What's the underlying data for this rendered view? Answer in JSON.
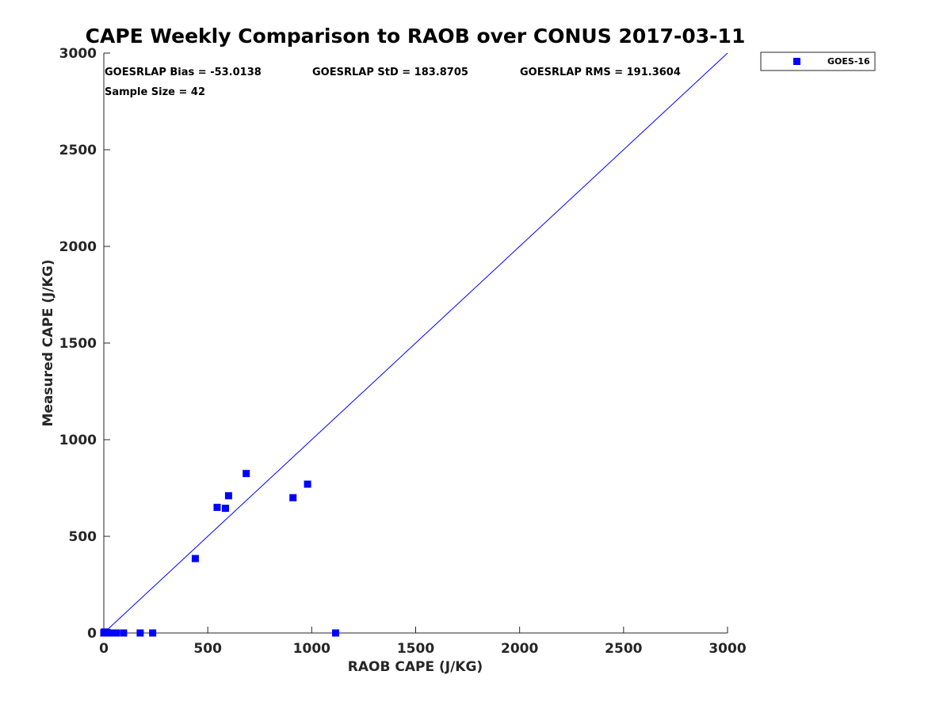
{
  "chart_data": {
    "type": "scatter",
    "title": "CAPE Weekly Comparison to RAOB over CONUS 2017-03-11",
    "xlabel": "RAOB CAPE (J/KG)",
    "ylabel": "Measured CAPE (J/KG)",
    "xlim": [
      0,
      3000
    ],
    "ylim": [
      0,
      3000
    ],
    "xticks": [
      0,
      500,
      1000,
      1500,
      2000,
      2500,
      3000
    ],
    "yticks": [
      0,
      500,
      1000,
      1500,
      2000,
      2500,
      3000
    ],
    "grid": false,
    "legend_position": "outside-top-right",
    "annotations": [
      "GOESRLAP Bias = -53.0138",
      "GOESRLAP StD = 183.8705",
      "GOESRLAP RMS = 191.3604",
      "Sample Size = 42"
    ],
    "reference_line": {
      "name": "1:1 line",
      "x": [
        0,
        3000
      ],
      "y": [
        0,
        3000
      ],
      "color": "#0000ff"
    },
    "series": [
      {
        "name": "GOES-16",
        "color": "#0000ff",
        "marker": "square",
        "points": [
          [
            0,
            0
          ],
          [
            3,
            5
          ],
          [
            8,
            0
          ],
          [
            15,
            3
          ],
          [
            25,
            0
          ],
          [
            40,
            0
          ],
          [
            60,
            0
          ],
          [
            95,
            0
          ],
          [
            175,
            0
          ],
          [
            235,
            0
          ],
          [
            1115,
            0
          ],
          [
            440,
            385
          ],
          [
            545,
            650
          ],
          [
            585,
            645
          ],
          [
            600,
            710
          ],
          [
            685,
            825
          ],
          [
            910,
            700
          ],
          [
            980,
            770
          ]
        ]
      }
    ]
  }
}
